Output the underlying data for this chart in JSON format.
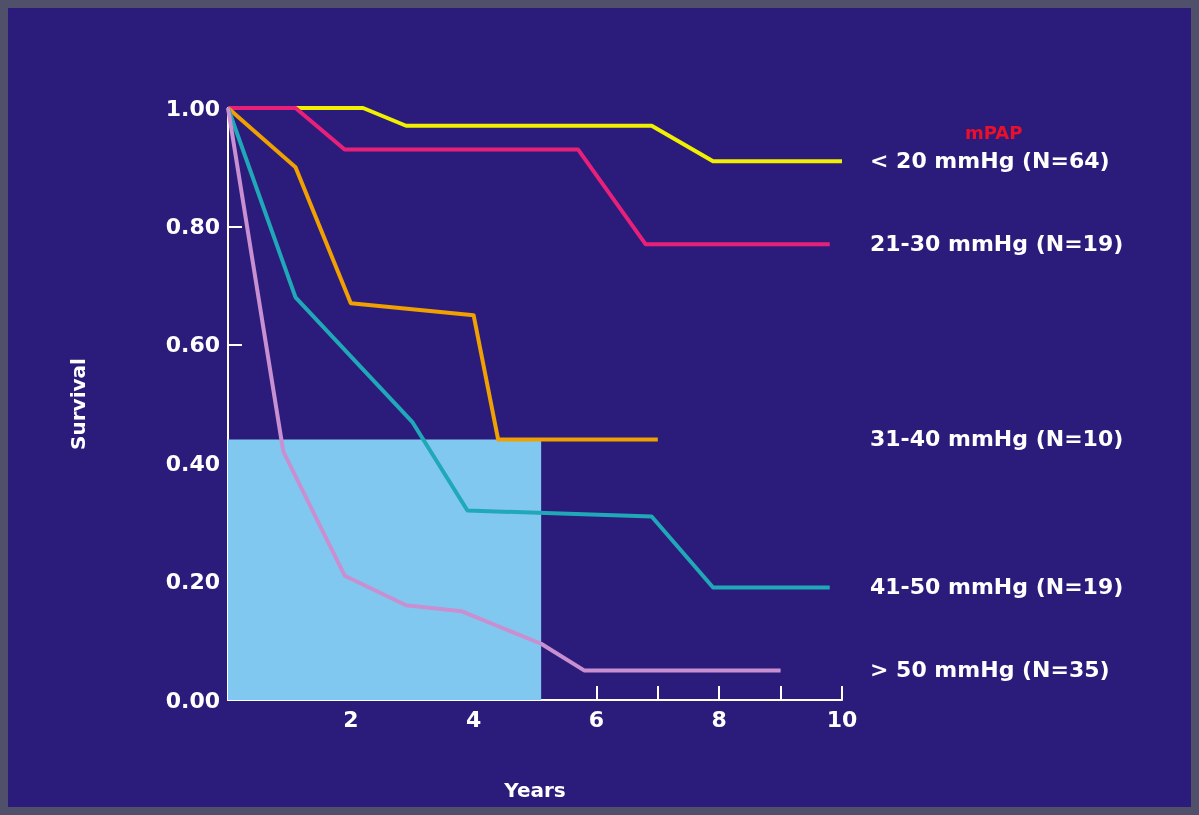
{
  "chart_data": {
    "type": "line",
    "xlabel": "Years",
    "ylabel": "Survival",
    "legend_title": "mPAP",
    "legend": "right",
    "marker": "none",
    "grid": false,
    "xlim": [
      0,
      10
    ],
    "xticks": [
      {
        "value": 1,
        "label": null
      },
      2,
      {
        "value": 3,
        "label": null
      },
      4,
      {
        "value": 5,
        "label": null
      },
      6,
      {
        "value": 7,
        "label": null
      },
      8,
      {
        "value": 9,
        "label": null
      },
      10
    ],
    "ylim": [
      0,
      1
    ],
    "yticks": [
      {
        "value": 0,
        "label": "0.00"
      },
      {
        "value": 0.2,
        "label": "0.20"
      },
      {
        "value": 0.4,
        "label": "0.40"
      },
      {
        "value": 0.6,
        "label": "0.60"
      },
      {
        "value": 0.8,
        "label": "0.80"
      },
      {
        "value": 1,
        "label": "1.00"
      }
    ],
    "series": [
      {
        "type": "area",
        "color": "#80c8f0",
        "x": [
          0,
          5.1
        ],
        "values": [
          0.44,
          0.44
        ]
      },
      {
        "name": "< 20 mmHg (N=64)",
        "color": "#f0f000",
        "x": [
          0,
          2.2,
          2.9,
          6.9,
          7.9,
          10
        ],
        "values": [
          1,
          1,
          0.97,
          0.97,
          0.91,
          0.91
        ]
      },
      {
        "name": "21-30 mmHg (N=19)",
        "color": "#e8207a",
        "x": [
          0,
          1.1,
          1.9,
          5.7,
          6.8,
          9.8
        ],
        "values": [
          1,
          1,
          0.93,
          0.93,
          0.77,
          0.77
        ]
      },
      {
        "name": "31-40 mmHg (N=10)",
        "color": "#f0a000",
        "x": [
          0,
          1.1,
          2,
          4,
          4.4,
          7
        ],
        "values": [
          1,
          0.9,
          0.67,
          0.65,
          0.44,
          0.44
        ]
      },
      {
        "name": "41-50 mmHg (N=19)",
        "color": "#20a8b8",
        "x": [
          0,
          1.1,
          3,
          3.9,
          6.9,
          7.9,
          9.8
        ],
        "values": [
          1,
          0.68,
          0.47,
          0.32,
          0.31,
          0.19,
          0.19
        ]
      },
      {
        "name": "> 50 mmHg (N=35)",
        "color": "#c890d0",
        "x": [
          0,
          0.9,
          1.9,
          2.9,
          3.8,
          5.1,
          5.8,
          9
        ],
        "values": [
          1,
          0.42,
          0.21,
          0.16,
          0.15,
          0.095,
          0.05,
          0.05
        ]
      }
    ]
  }
}
